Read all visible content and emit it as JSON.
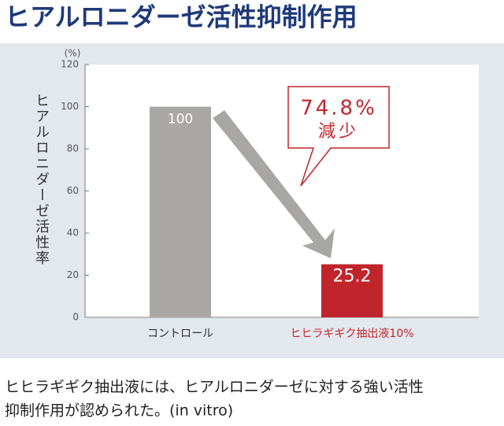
{
  "title": "ヒアルロニダーゼ活性抑制作用",
  "chart_data": {
    "type": "bar",
    "unit_label": "(%)",
    "y_axis_label": "ヒアルロニダーゼ活性率",
    "categories": [
      "コントロール",
      "ヒヒラギギク抽出液10%"
    ],
    "values": [
      100,
      25.2
    ],
    "colors": [
      "#a9a7a5",
      "#c1252c"
    ],
    "category_label_colors": [
      "#333333",
      "#c1252c"
    ],
    "ylim": [
      0,
      120
    ],
    "yticks": [
      0,
      20,
      40,
      60,
      80,
      100,
      120
    ],
    "annotation": {
      "lines": [
        "74.8%",
        "減少"
      ],
      "color": "#c1252c"
    }
  },
  "description": {
    "lines": [
      "ヒヒラギギク抽出液には、ヒアルロニダーゼに対する強い活性",
      "抑制作用が認められた。(in vitro)"
    ]
  }
}
